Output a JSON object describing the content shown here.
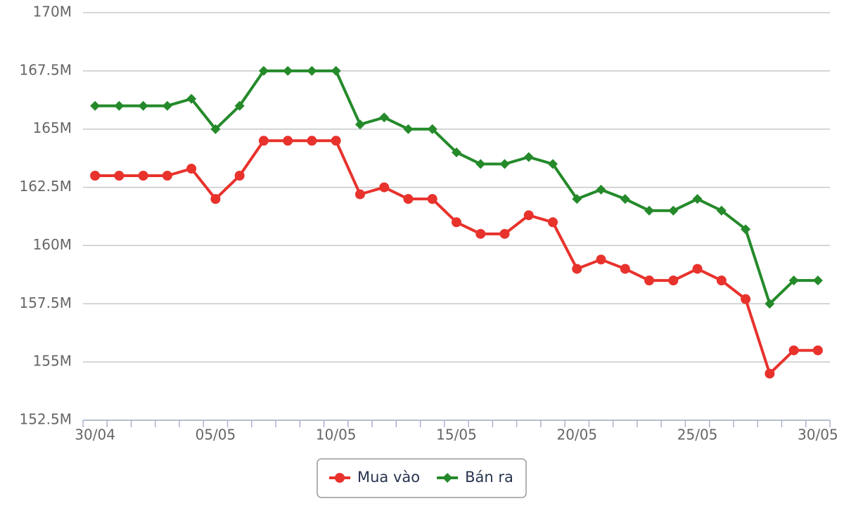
{
  "chart_data": {
    "type": "line",
    "categories": [
      "30/04",
      null,
      null,
      null,
      null,
      "05/05",
      null,
      null,
      null,
      null,
      "10/05",
      null,
      null,
      null,
      null,
      "15/05",
      null,
      null,
      null,
      null,
      "20/05",
      null,
      null,
      null,
      null,
      "25/05",
      null,
      null,
      null,
      null,
      "30/05"
    ],
    "series": [
      {
        "name": "Mua vào",
        "color": "#e8322c",
        "marker": "circle",
        "values": [
          163,
          163,
          163,
          163,
          163.3,
          162,
          163,
          164.5,
          164.5,
          164.5,
          164.5,
          162.2,
          162.5,
          162,
          162,
          161,
          160.5,
          160.5,
          161.3,
          161,
          159,
          159.4,
          159,
          158.5,
          158.5,
          159,
          158.5,
          157.7,
          154.5,
          155.5,
          155.5
        ]
      },
      {
        "name": "Bán ra",
        "color": "#248a2a",
        "marker": "diamond",
        "values": [
          166,
          166,
          166,
          166,
          166.3,
          165,
          166,
          167.5,
          167.5,
          167.5,
          167.5,
          165.2,
          165.5,
          165,
          165,
          164,
          163.5,
          163.5,
          163.8,
          163.5,
          162,
          162.4,
          162,
          161.5,
          161.5,
          162,
          161.5,
          160.7,
          157.5,
          158.5,
          158.5
        ]
      }
    ],
    "ylim": [
      152.5,
      170
    ],
    "yticks": [
      {
        "value": 152.5,
        "label": "152.5M"
      },
      {
        "value": 155,
        "label": "155M"
      },
      {
        "value": 157.5,
        "label": "157.5M"
      },
      {
        "value": 160,
        "label": "160M"
      },
      {
        "value": 162.5,
        "label": "162.5M"
      },
      {
        "value": 165,
        "label": "165M"
      },
      {
        "value": 167.5,
        "label": "167.5M"
      },
      {
        "value": 170,
        "label": "170M"
      }
    ],
    "grid": true,
    "legend": "bottom"
  }
}
